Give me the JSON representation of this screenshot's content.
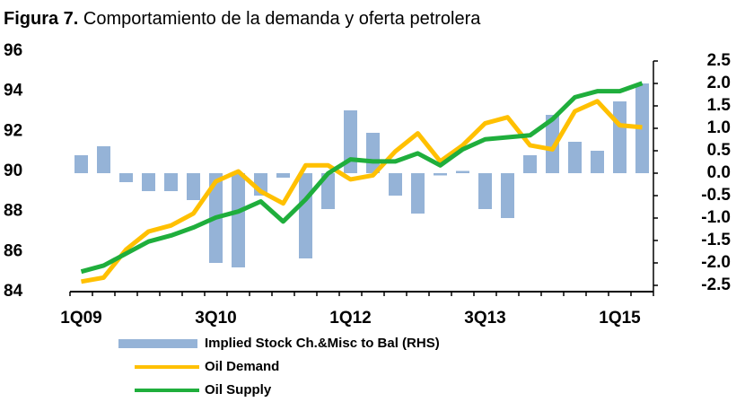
{
  "chart_data": {
    "type": "bar_line",
    "title_label": "Figura 7.",
    "title": "Comportamiento de la demanda y oferta petrolera",
    "categories": [
      "1Q09",
      null,
      null,
      null,
      null,
      null,
      "3Q10",
      null,
      null,
      null,
      null,
      null,
      "1Q12",
      null,
      null,
      null,
      null,
      null,
      "3Q13",
      null,
      null,
      null,
      null,
      null,
      "1Q15",
      null
    ],
    "series": [
      {
        "name": "Implied Stock Ch.&Misc to Bal (RHS)",
        "color": "#95b3d7",
        "axis": "y2",
        "kind": "bar",
        "values": [
          0.4,
          0.6,
          -0.2,
          -0.4,
          -0.4,
          -0.6,
          -2.0,
          -2.1,
          -0.5,
          -0.1,
          -1.9,
          -0.8,
          1.4,
          0.9,
          -0.5,
          -0.9,
          -0.05,
          0.05,
          -0.8,
          -1.0,
          0.4,
          1.3,
          0.7,
          0.5,
          1.6,
          2.0
        ]
      },
      {
        "name": "Oil Demand",
        "color": "#ffc000",
        "kind": "line",
        "values": [
          84.5,
          84.7,
          86.1,
          87.0,
          87.3,
          87.9,
          89.5,
          90.0,
          89.0,
          88.4,
          90.3,
          90.3,
          89.6,
          89.8,
          91.0,
          91.9,
          90.5,
          91.3,
          92.4,
          92.7,
          91.3,
          91.1,
          93.0,
          93.5,
          92.3,
          92.2
        ]
      },
      {
        "name": "Oil Supply",
        "color": "#1fae3c",
        "kind": "line",
        "values": [
          85.0,
          85.3,
          85.9,
          86.5,
          86.8,
          87.2,
          87.7,
          88.0,
          88.5,
          87.5,
          88.6,
          89.9,
          90.6,
          90.5,
          90.5,
          90.9,
          90.3,
          91.1,
          91.6,
          91.7,
          91.8,
          92.6,
          93.7,
          94.0,
          94.0,
          94.4
        ]
      }
    ],
    "ylim": [
      84,
      96
    ],
    "yticks": [
      84,
      86,
      88,
      90,
      92,
      94,
      96
    ],
    "y2lim": [
      -2.5,
      2.5
    ],
    "y2ticks": [
      {
        "value": 2.5,
        "label": "2.5"
      },
      {
        "value": 2.0,
        "label": "2.0"
      },
      {
        "value": 1.5,
        "label": "1.5"
      },
      {
        "value": 1.0,
        "label": "1.0"
      },
      {
        "value": 0.5,
        "label": "0.5"
      },
      {
        "value": 0.0,
        "label": "0.0"
      },
      {
        "value": -0.5,
        "label": "-0.5"
      },
      {
        "value": -1.0,
        "label": "-1.0"
      },
      {
        "value": -1.5,
        "label": "-1.5"
      },
      {
        "value": -2.0,
        "label": "-2.0"
      },
      {
        "value": -2.5,
        "label": "-2.5"
      }
    ],
    "grid": false
  }
}
